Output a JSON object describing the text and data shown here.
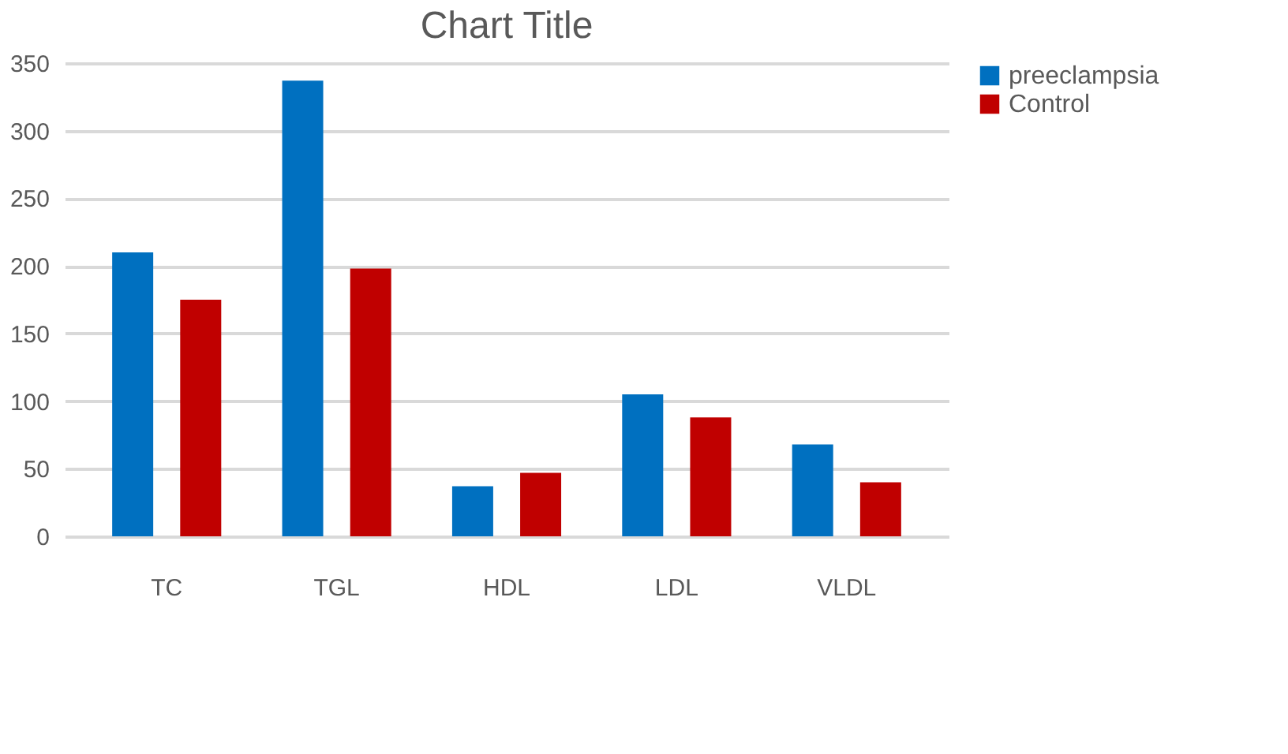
{
  "chart_data": {
    "type": "bar",
    "title": "Chart Title",
    "categories": [
      "TC",
      "TGL",
      "HDL",
      "LDL",
      "VLDL"
    ],
    "series": [
      {
        "name": "preeclampsia",
        "color": "#0070c0",
        "values": [
          210,
          337,
          37,
          105,
          68
        ]
      },
      {
        "name": "Control",
        "color": "#c00000",
        "values": [
          175,
          198,
          47,
          88,
          40
        ]
      }
    ],
    "ylim": [
      0,
      350
    ],
    "yticks": [
      0,
      50,
      100,
      150,
      200,
      250,
      300,
      350
    ],
    "grid": "y",
    "legend": "right"
  }
}
